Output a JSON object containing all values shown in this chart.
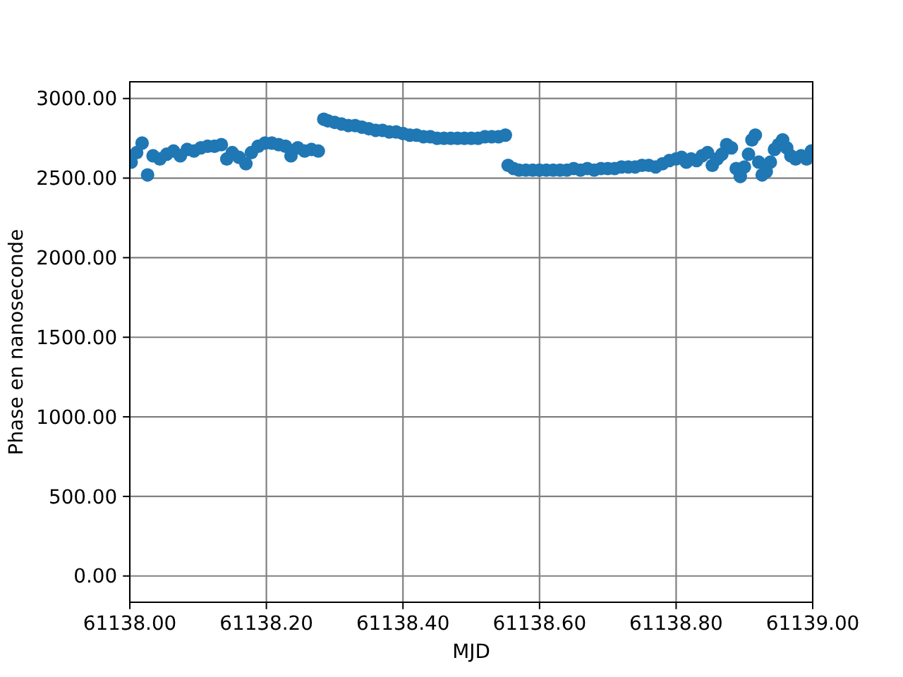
{
  "chart_data": {
    "type": "scatter",
    "xlabel": "MJD",
    "ylabel": "Phase en nanoseconde",
    "color": "#1f77b4",
    "marker": "circle",
    "grid": true,
    "x": [
      61138.002,
      61138.01,
      61138.018,
      61138.026,
      61138.034,
      61138.044,
      61138.054,
      61138.064,
      61138.074,
      61138.084,
      61138.094,
      61138.104,
      61138.114,
      61138.124,
      61138.134,
      61138.142,
      61138.15,
      61138.16,
      61138.17,
      61138.178,
      61138.188,
      61138.198,
      61138.208,
      61138.218,
      61138.228,
      61138.236,
      61138.246,
      61138.256,
      61138.266,
      61138.276,
      61138.284,
      61138.29,
      61138.3,
      61138.31,
      61138.32,
      61138.33,
      61138.34,
      61138.35,
      61138.36,
      61138.37,
      61138.38,
      61138.39,
      61138.4,
      61138.41,
      61138.42,
      61138.43,
      61138.44,
      61138.45,
      61138.46,
      61138.47,
      61138.48,
      61138.49,
      61138.5,
      61138.51,
      61138.52,
      61138.53,
      61138.54,
      61138.55,
      61138.554,
      61138.562,
      61138.57,
      61138.58,
      61138.59,
      61138.6,
      61138.61,
      61138.62,
      61138.63,
      61138.64,
      61138.65,
      61138.66,
      61138.67,
      61138.68,
      61138.69,
      61138.7,
      61138.71,
      61138.72,
      61138.73,
      61138.74,
      61138.75,
      61138.76,
      61138.77,
      61138.78,
      61138.79,
      61138.8,
      61138.808,
      61138.815,
      61138.822,
      61138.83,
      61138.838,
      61138.846,
      61138.853,
      61138.86,
      61138.867,
      61138.874,
      61138.881,
      61138.888,
      61138.894,
      61138.9,
      61138.906,
      61138.911,
      61138.916,
      61138.921,
      61138.926,
      61138.932,
      61138.938,
      61138.944,
      61138.95,
      61138.956,
      61138.962,
      61138.968,
      61138.975,
      61138.983,
      61138.991,
      61138.998
    ],
    "values": [
      2600,
      2660,
      2720,
      2520,
      2640,
      2620,
      2650,
      2670,
      2640,
      2680,
      2670,
      2690,
      2700,
      2700,
      2710,
      2620,
      2660,
      2630,
      2590,
      2660,
      2700,
      2720,
      2720,
      2710,
      2700,
      2640,
      2690,
      2670,
      2680,
      2670,
      2870,
      2860,
      2850,
      2840,
      2830,
      2830,
      2820,
      2810,
      2800,
      2800,
      2790,
      2790,
      2780,
      2770,
      2770,
      2760,
      2760,
      2750,
      2750,
      2750,
      2750,
      2750,
      2750,
      2750,
      2760,
      2760,
      2760,
      2770,
      2580,
      2560,
      2550,
      2550,
      2550,
      2550,
      2550,
      2550,
      2550,
      2550,
      2560,
      2550,
      2560,
      2550,
      2560,
      2560,
      2560,
      2570,
      2570,
      2570,
      2580,
      2580,
      2570,
      2590,
      2610,
      2620,
      2630,
      2600,
      2620,
      2610,
      2640,
      2660,
      2580,
      2620,
      2650,
      2710,
      2690,
      2560,
      2510,
      2570,
      2650,
      2740,
      2770,
      2600,
      2520,
      2540,
      2600,
      2680,
      2710,
      2740,
      2690,
      2640,
      2620,
      2640,
      2620,
      2670
    ],
    "xlim": [
      61138,
      61139
    ],
    "xticks": [
      {
        "value": 61138,
        "label": "61138.00"
      },
      {
        "value": 61138.2,
        "label": "61138.20"
      },
      {
        "value": 61138.4,
        "label": "61138.40"
      },
      {
        "value": 61138.6,
        "label": "61138.60"
      },
      {
        "value": 61138.8,
        "label": "61138.80"
      },
      {
        "value": 61139,
        "label": "61139.00"
      }
    ],
    "ylim": [
      -165,
      3105
    ],
    "yticks": [
      {
        "value": 0,
        "label": "0.00"
      },
      {
        "value": 500,
        "label": "500.00"
      },
      {
        "value": 1000,
        "label": "1000.00"
      },
      {
        "value": 1500,
        "label": "1500.00"
      },
      {
        "value": 2000,
        "label": "2000.00"
      },
      {
        "value": 2500,
        "label": "2500.00"
      },
      {
        "value": 3000,
        "label": "3000.00"
      }
    ]
  }
}
